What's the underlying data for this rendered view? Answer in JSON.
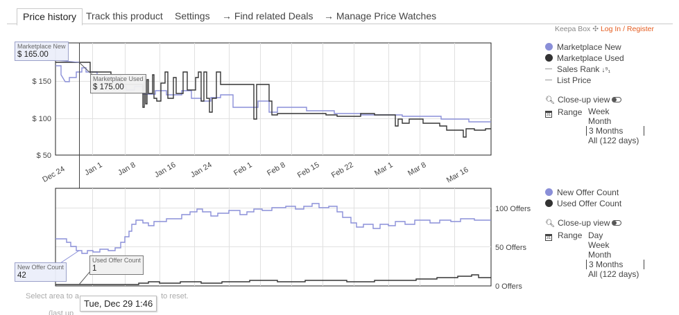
{
  "tabs": [
    {
      "label": "Price history",
      "active": true
    },
    {
      "label": "Track this product",
      "active": false
    },
    {
      "label": "Settings",
      "active": false
    },
    {
      "label": "→  Find related Deals",
      "active": false
    },
    {
      "label": "→  Manage Price Watches",
      "active": false
    }
  ],
  "header": {
    "keepa_box": "Keepa Box",
    "login": "Log In / Register"
  },
  "price_chart": {
    "y_ticks": [
      "$ 150",
      "$ 100",
      "$ 50"
    ],
    "x_ticks": [
      "Dec 24",
      "Jan 1",
      "Jan 8",
      "Jan 16",
      "Jan 24",
      "Feb 1",
      "Feb 8",
      "Feb 15",
      "Feb 22",
      "Mar 1",
      "Mar 8",
      "Mar 16"
    ],
    "legend": [
      {
        "label": "Marketplace New",
        "type": "dot",
        "color": "#8a8fd8"
      },
      {
        "label": "Marketplace Used",
        "type": "dot",
        "color": "#333333"
      },
      {
        "label": "Sales Rank",
        "type": "line",
        "color": "#999999"
      },
      {
        "label": "List Price",
        "type": "line",
        "color": "#999999"
      }
    ],
    "closeup_label": "Close-up view",
    "range_label": "Range",
    "range_options": [
      "Week",
      "Month",
      "3 Months",
      "All (122 days)"
    ],
    "range_selected": "3 Months",
    "tooltip_new": {
      "label": "Marketplace New",
      "value": "$ 165.00"
    },
    "tooltip_used": {
      "label": "Marketplace Used",
      "value": "$ 175.00"
    }
  },
  "offer_chart": {
    "y_ticks": [
      "100 Offers",
      "50 Offers",
      "0 Offers"
    ],
    "legend": [
      {
        "label": "New Offer Count",
        "type": "dot",
        "color": "#8a8fd8"
      },
      {
        "label": "Used Offer Count",
        "type": "dot",
        "color": "#333333"
      }
    ],
    "closeup_label": "Close-up view",
    "range_label": "Range",
    "range_options": [
      "Day",
      "Week",
      "Month",
      "3 Months",
      "All (122 days)"
    ],
    "range_selected": "3 Months",
    "tooltip_new": {
      "label": "New Offer Count",
      "value": "42"
    },
    "tooltip_used": {
      "label": "Used Offer Count",
      "value": "1"
    }
  },
  "crosshair_date": "Tue, Dec 29 1:46",
  "hint_text": "Select area to a",
  "hint_text_end": "to reset.",
  "hint2_text": "(last up",
  "colors": {
    "new": "#8a8fd8",
    "used": "#333333",
    "grid": "#dddddd",
    "accent": "#e45b1e"
  }
}
